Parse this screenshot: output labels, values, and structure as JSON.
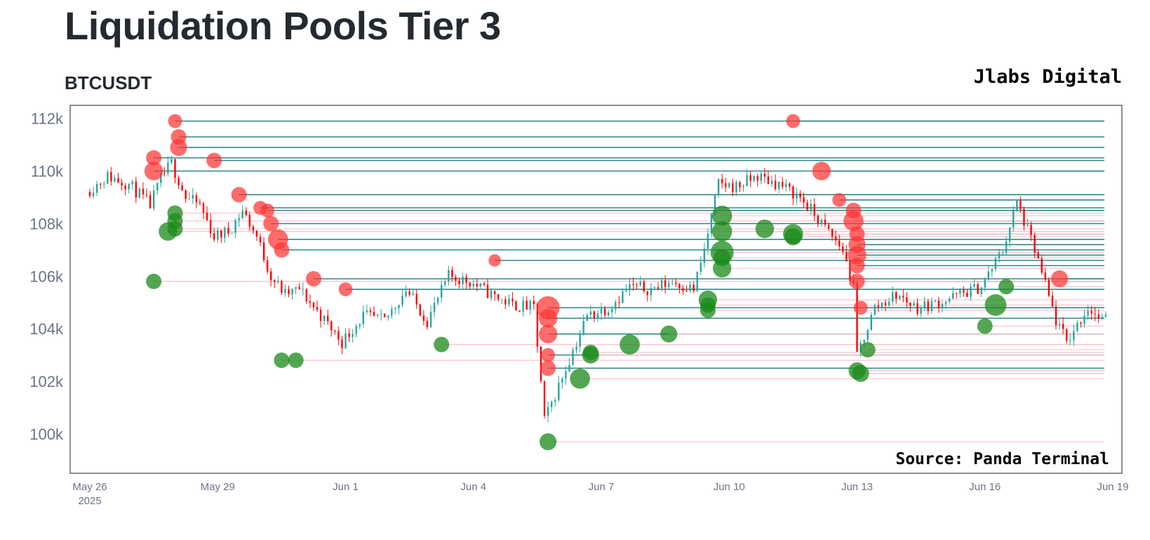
{
  "header": {
    "title": "Liquidation Pools Tier 3",
    "symbol": "BTCUSDT",
    "brand": "Jlabs Digital",
    "source": "Source: Panda Terminal"
  },
  "colors": {
    "up_candle": "#26a69a",
    "down_candle": "#ff0000",
    "short_pool": "#ff3333",
    "long_pool": "#1a8a1a",
    "short_level_line": "#1f7f7f",
    "long_level_line": "#ffc0cb",
    "axis": "#444444"
  },
  "chart_data": {
    "type": "candlestick",
    "title": "Liquidation Pools Tier 3",
    "subtitle": "BTCUSDT",
    "annotation": "Source: Panda Terminal",
    "x_axis": {
      "type": "date",
      "range": [
        "2025-05-26",
        "2025-06-19"
      ],
      "tick_values": [
        "2025-05-26",
        "2025-05-29",
        "2025-06-01",
        "2025-06-04",
        "2025-06-07",
        "2025-06-10",
        "2025-06-13",
        "2025-06-16",
        "2025-06-19"
      ],
      "tick_labels": [
        "May 26",
        "May 29",
        "Jun 1",
        "Jun 4",
        "Jun 7",
        "Jun 10",
        "Jun 13",
        "Jun 16",
        "Jun 19"
      ],
      "year_label": "2025"
    },
    "y_axis": {
      "range": [
        98500,
        112500
      ],
      "tick_values": [
        100000,
        102000,
        104000,
        106000,
        108000,
        110000,
        112000
      ],
      "tick_labels": [
        "100k",
        "102k",
        "104k",
        "106k",
        "108k",
        "110k",
        "112k"
      ]
    },
    "price_path": [
      [
        "2025-05-26 00:00",
        109200
      ],
      [
        "2025-05-26 12:00",
        109800
      ],
      [
        "2025-05-27 00:00",
        109500
      ],
      [
        "2025-05-27 12:00",
        108700
      ],
      [
        "2025-05-27 18:00",
        109700
      ],
      [
        "2025-05-28 00:00",
        110300
      ],
      [
        "2025-05-28 08:00",
        109000
      ],
      [
        "2025-05-28 16:00",
        108700
      ],
      [
        "2025-05-29 00:00",
        107500
      ],
      [
        "2025-05-29 08:00",
        107700
      ],
      [
        "2025-05-29 16:00",
        108500
      ],
      [
        "2025-05-30 00:00",
        107500
      ],
      [
        "2025-05-30 08:00",
        106000
      ],
      [
        "2025-05-30 16:00",
        105300
      ],
      [
        "2025-05-31 00:00",
        105500
      ],
      [
        "2025-05-31 12:00",
        104500
      ],
      [
        "2025-06-01 00:00",
        103500
      ],
      [
        "2025-06-01 12:00",
        104500
      ],
      [
        "2025-06-02 00:00",
        104300
      ],
      [
        "2025-06-02 12:00",
        105500
      ],
      [
        "2025-06-03 00:00",
        104300
      ],
      [
        "2025-06-03 12:00",
        106000
      ],
      [
        "2025-06-04 00:00",
        105800
      ],
      [
        "2025-06-04 12:00",
        105300
      ],
      [
        "2025-06-05 00:00",
        104900
      ],
      [
        "2025-06-05 12:00",
        104800
      ],
      [
        "2025-06-05 18:00",
        100500
      ],
      [
        "2025-06-06 06:00",
        102500
      ],
      [
        "2025-06-06 18:00",
        104500
      ],
      [
        "2025-06-07 06:00",
        104800
      ],
      [
        "2025-06-07 18:00",
        105600
      ],
      [
        "2025-06-08 06:00",
        105500
      ],
      [
        "2025-06-08 18:00",
        105800
      ],
      [
        "2025-06-09 06:00",
        105500
      ],
      [
        "2025-06-09 12:00",
        107000
      ],
      [
        "2025-06-09 20:00",
        109500
      ],
      [
        "2025-06-10 06:00",
        109400
      ],
      [
        "2025-06-10 18:00",
        109800
      ],
      [
        "2025-06-11 06:00",
        109500
      ],
      [
        "2025-06-11 18:00",
        109000
      ],
      [
        "2025-06-12 06:00",
        108000
      ],
      [
        "2025-06-12 18:00",
        107000
      ],
      [
        "2025-06-13 00:00",
        105500
      ],
      [
        "2025-06-13 02:00",
        103000
      ],
      [
        "2025-06-13 12:00",
        104800
      ],
      [
        "2025-06-14 00:00",
        105300
      ],
      [
        "2025-06-14 12:00",
        104800
      ],
      [
        "2025-06-15 00:00",
        105000
      ],
      [
        "2025-06-15 12:00",
        105300
      ],
      [
        "2025-06-16 00:00",
        105600
      ],
      [
        "2025-06-16 12:00",
        107000
      ],
      [
        "2025-06-16 20:00",
        108800
      ],
      [
        "2025-06-17 06:00",
        107000
      ],
      [
        "2025-06-17 18:00",
        104300
      ],
      [
        "2025-06-18 00:00",
        103500
      ],
      [
        "2025-06-18 12:00",
        104800
      ],
      [
        "2025-06-18 20:00",
        104300
      ]
    ],
    "series": [
      {
        "name": "short-pools",
        "points": [
          {
            "t": "2025-05-27 12:00",
            "price": 110500,
            "size": 1
          },
          {
            "t": "2025-05-27 12:00",
            "price": 110000,
            "size": 1.2
          },
          {
            "t": "2025-05-28 00:00",
            "price": 111900,
            "size": 0.9
          },
          {
            "t": "2025-05-28 02:00",
            "price": 111300,
            "size": 1
          },
          {
            "t": "2025-05-28 02:00",
            "price": 110900,
            "size": 1.1
          },
          {
            "t": "2025-05-28 22:00",
            "price": 110400,
            "size": 1
          },
          {
            "t": "2025-05-29 12:00",
            "price": 109100,
            "size": 1
          },
          {
            "t": "2025-05-30 00:00",
            "price": 108600,
            "size": 0.9
          },
          {
            "t": "2025-05-30 04:00",
            "price": 108500,
            "size": 0.9
          },
          {
            "t": "2025-05-30 06:00",
            "price": 108000,
            "size": 1
          },
          {
            "t": "2025-05-30 10:00",
            "price": 107400,
            "size": 1.3
          },
          {
            "t": "2025-05-30 12:00",
            "price": 107000,
            "size": 1
          },
          {
            "t": "2025-05-31 06:00",
            "price": 105900,
            "size": 1
          },
          {
            "t": "2025-06-01 00:00",
            "price": 105500,
            "size": 0.9
          },
          {
            "t": "2025-06-04 12:00",
            "price": 106600,
            "size": 0.8
          },
          {
            "t": "2025-06-05 18:00",
            "price": 104800,
            "size": 1.5
          },
          {
            "t": "2025-06-05 18:00",
            "price": 104400,
            "size": 1.2
          },
          {
            "t": "2025-06-05 18:00",
            "price": 103800,
            "size": 1.2
          },
          {
            "t": "2025-06-05 18:00",
            "price": 103000,
            "size": 0.9
          },
          {
            "t": "2025-06-05 18:00",
            "price": 102500,
            "size": 1
          },
          {
            "t": "2025-06-11 12:00",
            "price": 111900,
            "size": 0.9
          },
          {
            "t": "2025-06-12 04:00",
            "price": 110000,
            "size": 1.2
          },
          {
            "t": "2025-06-12 14:00",
            "price": 108900,
            "size": 0.9
          },
          {
            "t": "2025-06-12 22:00",
            "price": 108500,
            "size": 1
          },
          {
            "t": "2025-06-12 22:00",
            "price": 108100,
            "size": 1.3
          },
          {
            "t": "2025-06-13 00:00",
            "price": 107600,
            "size": 1
          },
          {
            "t": "2025-06-13 00:00",
            "price": 107200,
            "size": 1.1
          },
          {
            "t": "2025-06-13 00:00",
            "price": 106800,
            "size": 1.2
          },
          {
            "t": "2025-06-13 00:00",
            "price": 106400,
            "size": 1
          },
          {
            "t": "2025-06-13 00:00",
            "price": 105800,
            "size": 1
          },
          {
            "t": "2025-06-13 02:00",
            "price": 104800,
            "size": 0.9
          },
          {
            "t": "2025-06-17 18:00",
            "price": 105900,
            "size": 1.1
          }
        ]
      },
      {
        "name": "long-pools",
        "points": [
          {
            "t": "2025-05-27 12:00",
            "price": 105800,
            "size": 1
          },
          {
            "t": "2025-05-27 20:00",
            "price": 107700,
            "size": 1.2
          },
          {
            "t": "2025-05-28 00:00",
            "price": 108400,
            "size": 1
          },
          {
            "t": "2025-05-28 00:00",
            "price": 108100,
            "size": 1
          },
          {
            "t": "2025-05-28 00:00",
            "price": 107800,
            "size": 1
          },
          {
            "t": "2025-05-30 12:00",
            "price": 102800,
            "size": 1
          },
          {
            "t": "2025-05-30 20:00",
            "price": 102800,
            "size": 1
          },
          {
            "t": "2025-06-03 06:00",
            "price": 103400,
            "size": 1
          },
          {
            "t": "2025-06-05 18:00",
            "price": 99700,
            "size": 1.1
          },
          {
            "t": "2025-06-06 12:00",
            "price": 102100,
            "size": 1.3
          },
          {
            "t": "2025-06-06 18:00",
            "price": 103000,
            "size": 1.1
          },
          {
            "t": "2025-06-06 18:00",
            "price": 103100,
            "size": 1
          },
          {
            "t": "2025-06-07 16:00",
            "price": 103400,
            "size": 1.3
          },
          {
            "t": "2025-06-08 14:00",
            "price": 103800,
            "size": 1.1
          },
          {
            "t": "2025-06-09 12:00",
            "price": 105100,
            "size": 1.2
          },
          {
            "t": "2025-06-09 12:00",
            "price": 104900,
            "size": 1
          },
          {
            "t": "2025-06-09 12:00",
            "price": 104700,
            "size": 1
          },
          {
            "t": "2025-06-09 20:00",
            "price": 108300,
            "size": 1.3
          },
          {
            "t": "2025-06-09 20:00",
            "price": 107700,
            "size": 1.3
          },
          {
            "t": "2025-06-09 20:00",
            "price": 106900,
            "size": 1.5
          },
          {
            "t": "2025-06-09 20:00",
            "price": 106700,
            "size": 1.1
          },
          {
            "t": "2025-06-09 20:00",
            "price": 106300,
            "size": 1.2
          },
          {
            "t": "2025-06-10 20:00",
            "price": 107800,
            "size": 1.2
          },
          {
            "t": "2025-06-11 12:00",
            "price": 107600,
            "size": 1.3
          },
          {
            "t": "2025-06-11 12:00",
            "price": 107500,
            "size": 1.1
          },
          {
            "t": "2025-06-13 00:00",
            "price": 102400,
            "size": 1.1
          },
          {
            "t": "2025-06-13 02:00",
            "price": 102300,
            "size": 1.1
          },
          {
            "t": "2025-06-13 06:00",
            "price": 103200,
            "size": 1
          },
          {
            "t": "2025-06-16 00:00",
            "price": 104100,
            "size": 1
          },
          {
            "t": "2025-06-16 06:00",
            "price": 104900,
            "size": 1.4
          },
          {
            "t": "2025-06-16 12:00",
            "price": 105600,
            "size": 1
          }
        ]
      }
    ]
  }
}
